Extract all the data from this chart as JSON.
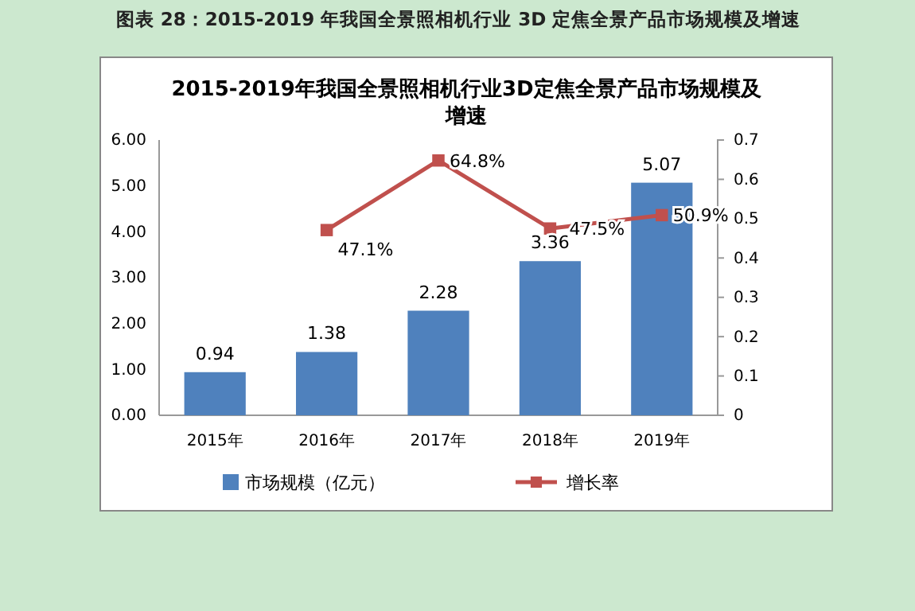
{
  "chart_data": {
    "type": "bar",
    "title": "2015-2019年我国全景照相机行业3D定焦全景产品市场规模及增速",
    "annotations": [
      "图表 28：2015-2019 年我国全景照相机行业 3D 定焦全景产品市场规模及增速"
    ],
    "categories": [
      "2015年",
      "2016年",
      "2017年",
      "2018年",
      "2019年"
    ],
    "series": [
      {
        "name": "市场规模（亿元）",
        "color": "#4f81bd",
        "values": [
          0.94,
          1.38,
          2.28,
          3.36,
          5.07
        ],
        "value_labels": [
          "0.94",
          "1.38",
          "2.28",
          "3.36",
          "5.07"
        ]
      },
      {
        "name": "增长率",
        "type": "line",
        "axis": "y2",
        "color": "#c0504d",
        "values": [
          null,
          0.471,
          0.648,
          0.475,
          0.509
        ],
        "value_labels": [
          null,
          "47.1%",
          "64.8%",
          "47.5%",
          "50.9%"
        ]
      }
    ],
    "ylim": [
      0,
      6
    ],
    "yticks": [
      {
        "value": 0,
        "label": "0.00"
      },
      {
        "value": 1,
        "label": "1.00"
      },
      {
        "value": 2,
        "label": "2.00"
      },
      {
        "value": 3,
        "label": "3.00"
      },
      {
        "value": 4,
        "label": "4.00"
      },
      {
        "value": 5,
        "label": "5.00"
      },
      {
        "value": 6,
        "label": "6.00"
      }
    ],
    "y2lim": [
      0,
      0.7
    ],
    "y2ticks": [
      0,
      0.1,
      0.2,
      0.3,
      0.4,
      0.5,
      0.6,
      0.7
    ],
    "marker": "square",
    "legend": "bottom",
    "grid": false
  }
}
